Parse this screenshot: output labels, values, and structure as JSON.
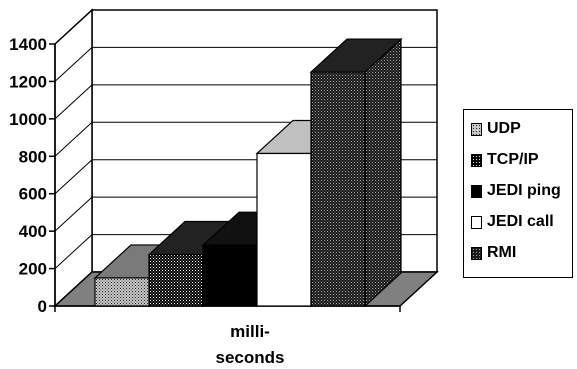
{
  "chart_data": {
    "type": "bar",
    "bar_style": "3d",
    "categories": [
      "milli-seconds"
    ],
    "x_label_lines": [
      "milli-",
      "seconds"
    ],
    "series": [
      {
        "name": "UDP",
        "values": [
          150
        ],
        "color": "#9a9a9a",
        "pattern": "light-dots"
      },
      {
        "name": "TCP/IP",
        "values": [
          275
        ],
        "color": "#1a1a1a",
        "pattern": "dark-dots"
      },
      {
        "name": "JEDI ping",
        "values": [
          325
        ],
        "color": "#000000",
        "pattern": "solid"
      },
      {
        "name": "JEDI call",
        "values": [
          815
        ],
        "color": "#ffffff",
        "pattern": "solid"
      },
      {
        "name": "RMI",
        "values": [
          1250
        ],
        "color": "#6a6a6a",
        "pattern": "crosshatch"
      }
    ],
    "y_ticks": [
      0,
      200,
      400,
      600,
      800,
      1000,
      1200,
      1400
    ],
    "ylim": [
      0,
      1400
    ],
    "grid": true,
    "legend_position": "right"
  }
}
